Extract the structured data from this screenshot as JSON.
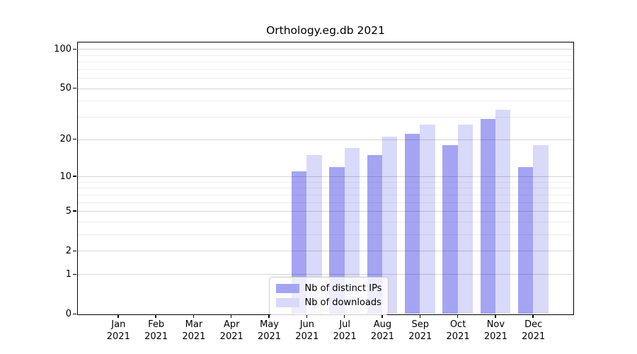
{
  "title": "Orthology.eg.db 2021",
  "legend": {
    "items": [
      {
        "key": "distinct_ips",
        "label": "Nb of distinct IPs"
      },
      {
        "key": "downloads",
        "label": "Nb of downloads"
      }
    ]
  },
  "colors": {
    "distinct_ips": "#a4a4f2",
    "downloads": "#d9d9f9",
    "grid_major": "rgba(0,0,0,0.16)",
    "grid_minor": "rgba(0,0,0,0.065)",
    "axis": "#000000"
  },
  "x_axis": {
    "months": [
      "Jan",
      "Feb",
      "Mar",
      "Apr",
      "May",
      "Jun",
      "Jul",
      "Aug",
      "Sep",
      "Oct",
      "Nov",
      "Dec"
    ],
    "year": "2021"
  },
  "y_axis": {
    "tick_values": [
      0,
      1,
      2,
      5,
      10,
      20,
      50,
      100
    ],
    "minor_gridline_values": [
      3,
      4,
      6,
      7,
      8,
      9,
      30,
      40,
      60,
      70,
      80,
      90
    ],
    "scale": "log1p",
    "max": 113
  },
  "chart_data": {
    "type": "bar",
    "title": "Orthology.eg.db 2021",
    "categories": [
      "Jan 2021",
      "Feb 2021",
      "Mar 2021",
      "Apr 2021",
      "May 2021",
      "Jun 2021",
      "Jul 2021",
      "Aug 2021",
      "Sep 2021",
      "Oct 2021",
      "Nov 2021",
      "Dec 2021"
    ],
    "series": [
      {
        "name": "Nb of distinct IPs",
        "color": "#a4a4f2",
        "values": [
          0,
          0,
          0,
          0,
          0,
          11,
          12,
          15,
          22,
          18,
          29,
          12
        ]
      },
      {
        "name": "Nb of downloads",
        "color": "#d9d9f9",
        "values": [
          0,
          0,
          0,
          0,
          0,
          15,
          17,
          21,
          26,
          26,
          34,
          18
        ]
      }
    ],
    "xlabel": "",
    "ylabel": "",
    "y_scale": "log10(1+x)",
    "y_ticks": [
      0,
      1,
      2,
      5,
      10,
      20,
      50,
      100
    ],
    "ylim": [
      0,
      113
    ],
    "grid": true,
    "legend_position": "lower center"
  }
}
